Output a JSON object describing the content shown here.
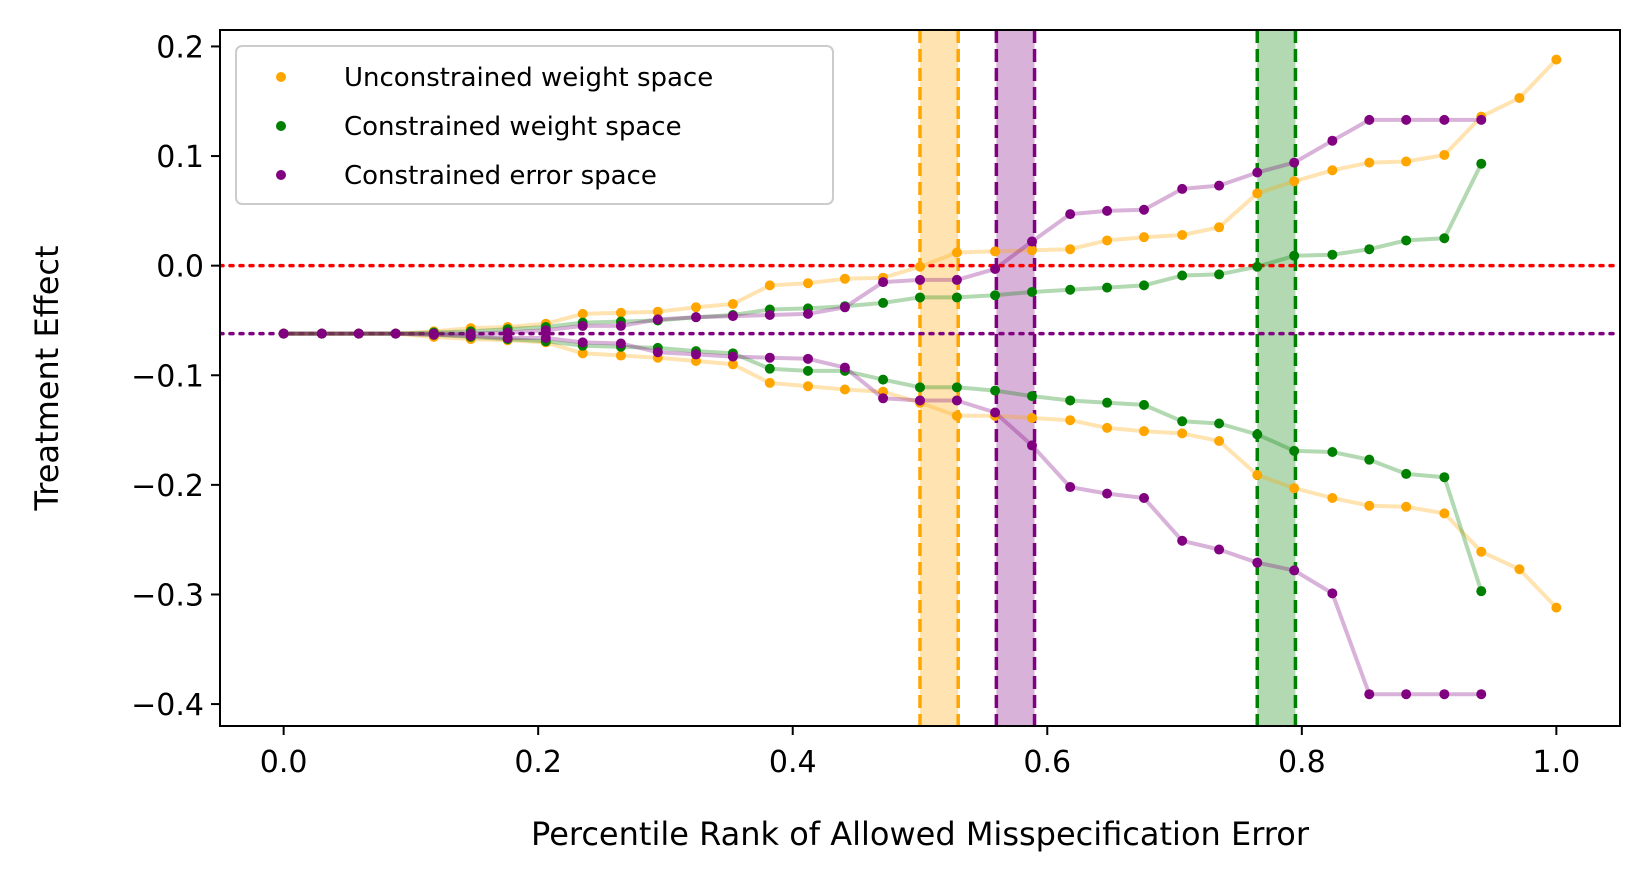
{
  "chart_data": {
    "type": "line",
    "title": "",
    "xlabel": "Percentile Rank of Allowed Misspecification Error",
    "ylabel": "Treatment Effect",
    "xlim": [
      -0.05,
      1.05
    ],
    "ylim": [
      -0.42,
      0.215
    ],
    "xticks": [
      0.0,
      0.2,
      0.4,
      0.6,
      0.8,
      1.0
    ],
    "xtick_labels": [
      "0.0",
      "0.2",
      "0.4",
      "0.6",
      "0.8",
      "1.0"
    ],
    "yticks": [
      0.2,
      0.1,
      0.0,
      -0.1,
      -0.2,
      -0.3,
      -0.4
    ],
    "ytick_labels": [
      "0.2",
      "0.1",
      "0.0",
      "−0.1",
      "−0.2",
      "−0.3",
      "−0.4"
    ],
    "grid": false,
    "legend_position": "top-left",
    "colors": {
      "unconstrained": "#ffa500",
      "constrained_weight": "#008000",
      "constrained_error": "#800080",
      "zero_line": "#ff0000"
    },
    "reference_lines": [
      {
        "name": "zero",
        "y": 0.0,
        "color": "#ff0000",
        "style": "dotted"
      },
      {
        "name": "estimate",
        "y": -0.062,
        "color": "#800080",
        "style": "dotted"
      }
    ],
    "bands": [
      {
        "series": "Unconstrained weight space",
        "x0": 0.5,
        "x1": 0.53,
        "color": "#ffa500"
      },
      {
        "series": "Constrained error space",
        "x0": 0.56,
        "x1": 0.59,
        "color": "#800080"
      },
      {
        "series": "Constrained weight space",
        "x0": 0.765,
        "x1": 0.795,
        "color": "#008000"
      }
    ],
    "series": [
      {
        "name": "Unconstrained weight space",
        "color": "#ffa500",
        "x": [
          0.0,
          0.03,
          0.059,
          0.088,
          0.118,
          0.147,
          0.176,
          0.206,
          0.235,
          0.265,
          0.294,
          0.324,
          0.353,
          0.382,
          0.412,
          0.441,
          0.471,
          0.5,
          0.529,
          0.559,
          0.588,
          0.618,
          0.647,
          0.676,
          0.706,
          0.735,
          0.765,
          0.794,
          0.824,
          0.853,
          0.882,
          0.912,
          0.941,
          0.971,
          1.0
        ],
        "upper": [
          -0.062,
          -0.062,
          -0.062,
          -0.062,
          -0.06,
          -0.057,
          -0.056,
          -0.053,
          -0.044,
          -0.043,
          -0.042,
          -0.038,
          -0.035,
          -0.018,
          -0.016,
          -0.012,
          -0.011,
          -0.001,
          0.012,
          0.013,
          0.014,
          0.015,
          0.023,
          0.026,
          0.028,
          0.035,
          0.066,
          0.077,
          0.087,
          0.094,
          0.095,
          0.101,
          0.136,
          0.153,
          0.188
        ],
        "lower": [
          -0.062,
          -0.062,
          -0.062,
          -0.062,
          -0.065,
          -0.067,
          -0.068,
          -0.07,
          -0.08,
          -0.082,
          -0.084,
          -0.087,
          -0.09,
          -0.107,
          -0.11,
          -0.113,
          -0.115,
          -0.125,
          -0.137,
          -0.137,
          -0.139,
          -0.141,
          -0.148,
          -0.151,
          -0.153,
          -0.16,
          -0.191,
          -0.203,
          -0.212,
          -0.219,
          -0.22,
          -0.226,
          -0.261,
          -0.277,
          -0.312
        ]
      },
      {
        "name": "Constrained weight space",
        "color": "#008000",
        "x": [
          0.0,
          0.03,
          0.059,
          0.088,
          0.118,
          0.147,
          0.176,
          0.206,
          0.235,
          0.265,
          0.294,
          0.324,
          0.353,
          0.382,
          0.412,
          0.441,
          0.471,
          0.5,
          0.529,
          0.559,
          0.588,
          0.618,
          0.647,
          0.676,
          0.706,
          0.735,
          0.765,
          0.794,
          0.824,
          0.853,
          0.882,
          0.912,
          0.941
        ],
        "upper": [
          -0.062,
          -0.062,
          -0.062,
          -0.062,
          -0.061,
          -0.06,
          -0.058,
          -0.056,
          -0.052,
          -0.051,
          -0.05,
          -0.047,
          -0.045,
          -0.04,
          -0.039,
          -0.037,
          -0.034,
          -0.029,
          -0.029,
          -0.027,
          -0.024,
          -0.022,
          -0.02,
          -0.018,
          -0.009,
          -0.008,
          -0.001,
          0.009,
          0.01,
          0.015,
          0.023,
          0.025,
          0.093
        ],
        "lower": [
          -0.062,
          -0.062,
          -0.062,
          -0.062,
          -0.063,
          -0.065,
          -0.067,
          -0.069,
          -0.073,
          -0.074,
          -0.075,
          -0.078,
          -0.08,
          -0.094,
          -0.096,
          -0.096,
          -0.104,
          -0.111,
          -0.111,
          -0.114,
          -0.119,
          -0.123,
          -0.125,
          -0.127,
          -0.142,
          -0.144,
          -0.154,
          -0.169,
          -0.17,
          -0.177,
          -0.19,
          -0.193,
          -0.297
        ]
      },
      {
        "name": "Constrained error space",
        "color": "#800080",
        "x": [
          0.0,
          0.03,
          0.059,
          0.088,
          0.118,
          0.147,
          0.176,
          0.206,
          0.235,
          0.265,
          0.294,
          0.324,
          0.353,
          0.382,
          0.412,
          0.441,
          0.471,
          0.5,
          0.529,
          0.559,
          0.588,
          0.618,
          0.647,
          0.676,
          0.706,
          0.735,
          0.765,
          0.794,
          0.824,
          0.853,
          0.882,
          0.912,
          0.941
        ],
        "upper": [
          -0.062,
          -0.062,
          -0.062,
          -0.062,
          -0.062,
          -0.062,
          -0.061,
          -0.059,
          -0.055,
          -0.055,
          -0.049,
          -0.047,
          -0.046,
          -0.045,
          -0.044,
          -0.038,
          -0.015,
          -0.013,
          -0.013,
          -0.003,
          0.022,
          0.047,
          0.05,
          0.051,
          0.07,
          0.073,
          0.085,
          0.094,
          0.114,
          0.133,
          0.133,
          0.133,
          0.133
        ],
        "lower": [
          -0.062,
          -0.062,
          -0.062,
          -0.062,
          -0.063,
          -0.064,
          -0.066,
          -0.066,
          -0.07,
          -0.071,
          -0.079,
          -0.081,
          -0.083,
          -0.084,
          -0.085,
          -0.093,
          -0.121,
          -0.123,
          -0.123,
          -0.134,
          -0.164,
          -0.202,
          -0.208,
          -0.212,
          -0.251,
          -0.259,
          -0.271,
          -0.278,
          -0.299,
          -0.391,
          -0.391,
          -0.391,
          -0.391
        ]
      }
    ],
    "legend": [
      "Unconstrained weight space",
      "Constrained weight space",
      "Constrained error space"
    ]
  }
}
